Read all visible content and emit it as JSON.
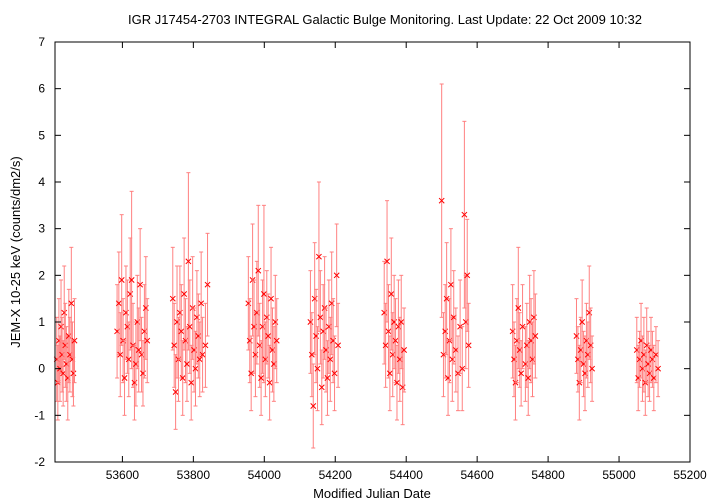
{
  "chart_data": {
    "type": "scatter",
    "title": "IGR J17454-2703    INTEGRAL Galactic Bulge Monitoring.  Last Update: 22 Oct 2009 10:32",
    "xlabel": "Modified Julian Date",
    "ylabel": "JEM-X 10-25 keV (counts/dm2/s)",
    "xlim": [
      53410,
      55200
    ],
    "ylim": [
      -2,
      7
    ],
    "xticks": [
      "53600",
      "53800",
      "54000",
      "54200",
      "54400",
      "54600",
      "54800",
      "55000",
      "55200"
    ],
    "xtick_values": [
      53600,
      53800,
      54000,
      54200,
      54400,
      54600,
      54800,
      55000,
      55200
    ],
    "yticks": [
      "-2",
      "-1",
      "0",
      "1",
      "2",
      "3",
      "4",
      "5",
      "6",
      "7"
    ],
    "ytick_values": [
      -2,
      -1,
      0,
      1,
      2,
      3,
      4,
      5,
      6,
      7
    ],
    "grid": false,
    "marker_color": "#ff0000",
    "errorbar_color": "#ff8080",
    "series": [
      {
        "points": [
          {
            "x": 53415,
            "y": 0.2,
            "e": 0.9
          },
          {
            "x": 53418,
            "y": -0.3,
            "e": 0.8
          },
          {
            "x": 53421,
            "y": 0.6,
            "e": 0.9
          },
          {
            "x": 53424,
            "y": 0.0,
            "e": 0.7
          },
          {
            "x": 53427,
            "y": 0.9,
            "e": 1.0
          },
          {
            "x": 53430,
            "y": 0.3,
            "e": 0.8
          },
          {
            "x": 53433,
            "y": -0.1,
            "e": 0.7
          },
          {
            "x": 53436,
            "y": 1.2,
            "e": 1.0
          },
          {
            "x": 53439,
            "y": 0.5,
            "e": 0.9
          },
          {
            "x": 53442,
            "y": 0.1,
            "e": 0.8
          },
          {
            "x": 53446,
            "y": -0.2,
            "e": 0.9
          },
          {
            "x": 53449,
            "y": 0.7,
            "e": 1.0
          },
          {
            "x": 53452,
            "y": 0.3,
            "e": 0.8
          },
          {
            "x": 53456,
            "y": 1.4,
            "e": 1.2
          },
          {
            "x": 53459,
            "y": 0.2,
            "e": 0.8
          },
          {
            "x": 53462,
            "y": -0.1,
            "e": 0.7
          },
          {
            "x": 53465,
            "y": 0.6,
            "e": 0.9
          },
          {
            "x": 53585,
            "y": 0.8,
            "e": 1.0
          },
          {
            "x": 53590,
            "y": 1.4,
            "e": 1.1
          },
          {
            "x": 53594,
            "y": 0.3,
            "e": 0.9
          },
          {
            "x": 53598,
            "y": 1.9,
            "e": 1.4
          },
          {
            "x": 53602,
            "y": 0.6,
            "e": 0.9
          },
          {
            "x": 53606,
            "y": -0.2,
            "e": 0.8
          },
          {
            "x": 53610,
            "y": 1.2,
            "e": 1.0
          },
          {
            "x": 53614,
            "y": 0.9,
            "e": 1.0
          },
          {
            "x": 53618,
            "y": 0.2,
            "e": 0.8
          },
          {
            "x": 53622,
            "y": 1.6,
            "e": 1.2
          },
          {
            "x": 53626,
            "y": 1.9,
            "e": 1.9
          },
          {
            "x": 53630,
            "y": 0.5,
            "e": 0.9
          },
          {
            "x": 53634,
            "y": -0.3,
            "e": 0.8
          },
          {
            "x": 53638,
            "y": 0.1,
            "e": 0.9
          },
          {
            "x": 53642,
            "y": 1.0,
            "e": 1.0
          },
          {
            "x": 53646,
            "y": 0.4,
            "e": 0.9
          },
          {
            "x": 53650,
            "y": 1.8,
            "e": 1.2
          },
          {
            "x": 53654,
            "y": 0.3,
            "e": 0.8
          },
          {
            "x": 53658,
            "y": -0.1,
            "e": 0.7
          },
          {
            "x": 53662,
            "y": 0.8,
            "e": 1.0
          },
          {
            "x": 53666,
            "y": 1.3,
            "e": 1.1
          },
          {
            "x": 53670,
            "y": 0.6,
            "e": 0.9
          },
          {
            "x": 53742,
            "y": 1.5,
            "e": 1.1
          },
          {
            "x": 53746,
            "y": 0.5,
            "e": 0.9
          },
          {
            "x": 53750,
            "y": -0.5,
            "e": 0.8
          },
          {
            "x": 53754,
            "y": 1.0,
            "e": 1.2
          },
          {
            "x": 53758,
            "y": 0.2,
            "e": 0.9
          },
          {
            "x": 53762,
            "y": 1.2,
            "e": 1.0
          },
          {
            "x": 53766,
            "y": 0.8,
            "e": 1.0
          },
          {
            "x": 53770,
            "y": -0.2,
            "e": 0.8
          },
          {
            "x": 53774,
            "y": 1.6,
            "e": 1.2
          },
          {
            "x": 53778,
            "y": 0.6,
            "e": 0.9
          },
          {
            "x": 53782,
            "y": 0.1,
            "e": 0.8
          },
          {
            "x": 53786,
            "y": 2.3,
            "e": 1.9
          },
          {
            "x": 53790,
            "y": 0.9,
            "e": 1.0
          },
          {
            "x": 53794,
            "y": -0.3,
            "e": 0.8
          },
          {
            "x": 53798,
            "y": 1.3,
            "e": 1.1
          },
          {
            "x": 53802,
            "y": 0.4,
            "e": 0.9
          },
          {
            "x": 53806,
            "y": 0.0,
            "e": 0.8
          },
          {
            "x": 53810,
            "y": 1.1,
            "e": 1.0
          },
          {
            "x": 53814,
            "y": 0.7,
            "e": 0.9
          },
          {
            "x": 53818,
            "y": 0.2,
            "e": 0.8
          },
          {
            "x": 53822,
            "y": 1.4,
            "e": 1.1
          },
          {
            "x": 53826,
            "y": 0.3,
            "e": 0.8
          },
          {
            "x": 53834,
            "y": 0.5,
            "e": 0.9
          },
          {
            "x": 53840,
            "y": 1.8,
            "e": 1.1
          },
          {
            "x": 53955,
            "y": 1.4,
            "e": 1.0
          },
          {
            "x": 53959,
            "y": 0.6,
            "e": 0.9
          },
          {
            "x": 53963,
            "y": -0.1,
            "e": 0.8
          },
          {
            "x": 53967,
            "y": 1.9,
            "e": 1.2
          },
          {
            "x": 53971,
            "y": 0.9,
            "e": 1.0
          },
          {
            "x": 53975,
            "y": 0.3,
            "e": 0.9
          },
          {
            "x": 53979,
            "y": 1.2,
            "e": 1.1
          },
          {
            "x": 53983,
            "y": 2.1,
            "e": 1.4
          },
          {
            "x": 53987,
            "y": 0.5,
            "e": 0.9
          },
          {
            "x": 53991,
            "y": -0.2,
            "e": 0.8
          },
          {
            "x": 53995,
            "y": 0.9,
            "e": 1.0
          },
          {
            "x": 53999,
            "y": 1.6,
            "e": 1.9
          },
          {
            "x": 54003,
            "y": 0.2,
            "e": 0.8
          },
          {
            "x": 54007,
            "y": 1.1,
            "e": 1.0
          },
          {
            "x": 54011,
            "y": 0.7,
            "e": 0.9
          },
          {
            "x": 54015,
            "y": -0.3,
            "e": 0.8
          },
          {
            "x": 54019,
            "y": 1.5,
            "e": 1.1
          },
          {
            "x": 54023,
            "y": 0.4,
            "e": 0.9
          },
          {
            "x": 54027,
            "y": 0.1,
            "e": 0.8
          },
          {
            "x": 54031,
            "y": 1.0,
            "e": 1.0
          },
          {
            "x": 54035,
            "y": 0.6,
            "e": 0.9
          },
          {
            "x": 54130,
            "y": 1.0,
            "e": 1.1
          },
          {
            "x": 54134,
            "y": 0.3,
            "e": 0.9
          },
          {
            "x": 54138,
            "y": -0.8,
            "e": 0.9
          },
          {
            "x": 54142,
            "y": 1.5,
            "e": 1.2
          },
          {
            "x": 54146,
            "y": 0.7,
            "e": 1.0
          },
          {
            "x": 54150,
            "y": 0.0,
            "e": 0.9
          },
          {
            "x": 54154,
            "y": 2.4,
            "e": 1.6
          },
          {
            "x": 54158,
            "y": 1.1,
            "e": 1.0
          },
          {
            "x": 54162,
            "y": -0.4,
            "e": 0.8
          },
          {
            "x": 54166,
            "y": 0.8,
            "e": 1.0
          },
          {
            "x": 54170,
            "y": 1.3,
            "e": 1.1
          },
          {
            "x": 54174,
            "y": 0.4,
            "e": 0.9
          },
          {
            "x": 54178,
            "y": -0.2,
            "e": 0.8
          },
          {
            "x": 54182,
            "y": 0.9,
            "e": 1.0
          },
          {
            "x": 54186,
            "y": 0.2,
            "e": 0.9
          },
          {
            "x": 54190,
            "y": 1.4,
            "e": 1.1
          },
          {
            "x": 54194,
            "y": 0.6,
            "e": 0.9
          },
          {
            "x": 54198,
            "y": -0.1,
            "e": 0.8
          },
          {
            "x": 54204,
            "y": 2.0,
            "e": 1.1
          },
          {
            "x": 54208,
            "y": 0.5,
            "e": 0.9
          },
          {
            "x": 54338,
            "y": 1.2,
            "e": 1.1
          },
          {
            "x": 54342,
            "y": 0.5,
            "e": 0.9
          },
          {
            "x": 54346,
            "y": 2.3,
            "e": 1.3
          },
          {
            "x": 54350,
            "y": 0.8,
            "e": 1.0
          },
          {
            "x": 54354,
            "y": -0.1,
            "e": 0.8
          },
          {
            "x": 54358,
            "y": 1.6,
            "e": 1.2
          },
          {
            "x": 54362,
            "y": 0.3,
            "e": 0.9
          },
          {
            "x": 54366,
            "y": 1.0,
            "e": 1.0
          },
          {
            "x": 54370,
            "y": 0.6,
            "e": 0.9
          },
          {
            "x": 54374,
            "y": -0.3,
            "e": 0.8
          },
          {
            "x": 54378,
            "y": 0.9,
            "e": 1.0
          },
          {
            "x": 54382,
            "y": 0.2,
            "e": 0.9
          },
          {
            "x": 54386,
            "y": 1.0,
            "e": 1.0
          },
          {
            "x": 54390,
            "y": -0.4,
            "e": 0.8
          },
          {
            "x": 54394,
            "y": 0.4,
            "e": 0.9
          },
          {
            "x": 54500,
            "y": 3.6,
            "e": 2.5
          },
          {
            "x": 54505,
            "y": 0.3,
            "e": 0.9
          },
          {
            "x": 54510,
            "y": 0.8,
            "e": 1.0
          },
          {
            "x": 54514,
            "y": 1.5,
            "e": 1.2
          },
          {
            "x": 54518,
            "y": -0.2,
            "e": 0.8
          },
          {
            "x": 54522,
            "y": 0.6,
            "e": 0.9
          },
          {
            "x": 54526,
            "y": 1.8,
            "e": 1.2
          },
          {
            "x": 54530,
            "y": 0.2,
            "e": 0.9
          },
          {
            "x": 54534,
            "y": 1.1,
            "e": 1.0
          },
          {
            "x": 54540,
            "y": 0.4,
            "e": 0.9
          },
          {
            "x": 54546,
            "y": -0.1,
            "e": 0.8
          },
          {
            "x": 54552,
            "y": 0.9,
            "e": 1.0
          },
          {
            "x": 54558,
            "y": 0.0,
            "e": 0.9
          },
          {
            "x": 54564,
            "y": 3.3,
            "e": 2.0
          },
          {
            "x": 54568,
            "y": 1.0,
            "e": 1.0
          },
          {
            "x": 54572,
            "y": 2.0,
            "e": 1.2
          },
          {
            "x": 54576,
            "y": 0.5,
            "e": 0.9
          },
          {
            "x": 54700,
            "y": 0.8,
            "e": 1.0
          },
          {
            "x": 54704,
            "y": 0.2,
            "e": 0.8
          },
          {
            "x": 54708,
            "y": -0.3,
            "e": 0.8
          },
          {
            "x": 54712,
            "y": 0.6,
            "e": 0.9
          },
          {
            "x": 54716,
            "y": 1.3,
            "e": 1.3
          },
          {
            "x": 54720,
            "y": 0.4,
            "e": 0.8
          },
          {
            "x": 54724,
            "y": -0.1,
            "e": 0.7
          },
          {
            "x": 54728,
            "y": 0.9,
            "e": 0.9
          },
          {
            "x": 54736,
            "y": 0.1,
            "e": 0.8
          },
          {
            "x": 54740,
            "y": 0.5,
            "e": 0.9
          },
          {
            "x": 54744,
            "y": -0.2,
            "e": 0.8
          },
          {
            "x": 54748,
            "y": 1.0,
            "e": 1.0
          },
          {
            "x": 54752,
            "y": 0.6,
            "e": 0.9
          },
          {
            "x": 54756,
            "y": 0.2,
            "e": 0.8
          },
          {
            "x": 54760,
            "y": 1.1,
            "e": 1.0
          },
          {
            "x": 54764,
            "y": 0.7,
            "e": 0.9
          },
          {
            "x": 54880,
            "y": 0.7,
            "e": 0.8
          },
          {
            "x": 54884,
            "y": 0.2,
            "e": 0.7
          },
          {
            "x": 54888,
            "y": -0.3,
            "e": 0.8
          },
          {
            "x": 54892,
            "y": 0.4,
            "e": 0.7
          },
          {
            "x": 54896,
            "y": 1.0,
            "e": 0.9
          },
          {
            "x": 54900,
            "y": 0.1,
            "e": 0.7
          },
          {
            "x": 54904,
            "y": -0.1,
            "e": 0.8
          },
          {
            "x": 54908,
            "y": 0.6,
            "e": 0.8
          },
          {
            "x": 54912,
            "y": 0.3,
            "e": 0.7
          },
          {
            "x": 54916,
            "y": 1.2,
            "e": 1.0
          },
          {
            "x": 54920,
            "y": 0.5,
            "e": 0.8
          },
          {
            "x": 54924,
            "y": 0.0,
            "e": 0.7
          },
          {
            "x": 55050,
            "y": 0.4,
            "e": 0.7
          },
          {
            "x": 55054,
            "y": -0.2,
            "e": 0.7
          },
          {
            "x": 55058,
            "y": 0.2,
            "e": 0.6
          },
          {
            "x": 55062,
            "y": 0.6,
            "e": 0.8
          },
          {
            "x": 55066,
            "y": 0.0,
            "e": 0.7
          },
          {
            "x": 55070,
            "y": 0.3,
            "e": 0.8
          },
          {
            "x": 55074,
            "y": -0.3,
            "e": 0.7
          },
          {
            "x": 55078,
            "y": 0.5,
            "e": 0.8
          },
          {
            "x": 55082,
            "y": 0.1,
            "e": 0.7
          },
          {
            "x": 55086,
            "y": -0.1,
            "e": 0.6
          },
          {
            "x": 55090,
            "y": 0.4,
            "e": 0.7
          },
          {
            "x": 55094,
            "y": 0.2,
            "e": 0.6
          },
          {
            "x": 55098,
            "y": -0.2,
            "e": 0.7
          },
          {
            "x": 55104,
            "y": 0.3,
            "e": 0.6
          },
          {
            "x": 55110,
            "y": 0.0,
            "e": 0.6
          }
        ]
      }
    ]
  }
}
